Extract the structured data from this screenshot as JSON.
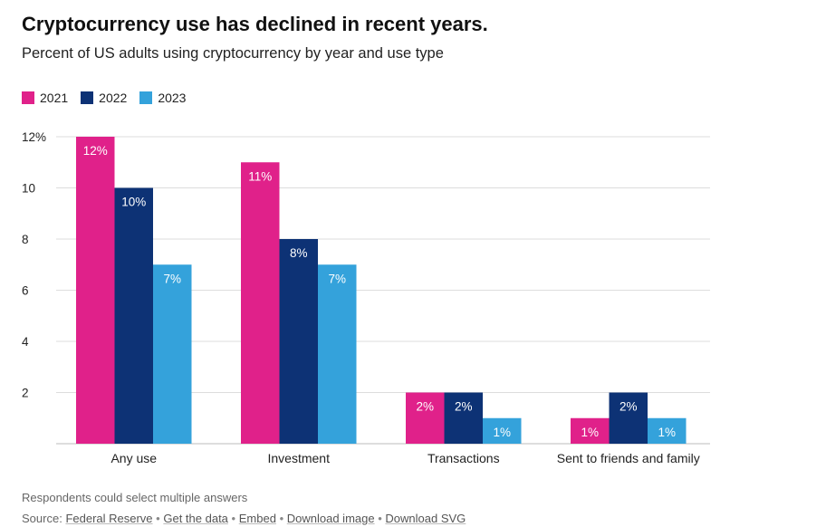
{
  "header": {
    "title": "Cryptocurrency use has declined in recent years.",
    "subtitle": "Percent of US adults using cryptocurrency by year and use type"
  },
  "legend": [
    {
      "label": "2021",
      "color": "#e0218a"
    },
    {
      "label": "2022",
      "color": "#0d3275"
    },
    {
      "label": "2023",
      "color": "#34a2db"
    }
  ],
  "chart_data": {
    "type": "bar",
    "categories": [
      "Any use",
      "Investment",
      "Transactions",
      "Sent to friends and family"
    ],
    "series": [
      {
        "name": "2021",
        "values": [
          12,
          11,
          2,
          1
        ],
        "color": "#e0218a"
      },
      {
        "name": "2022",
        "values": [
          10,
          8,
          2,
          2
        ],
        "color": "#0d3275"
      },
      {
        "name": "2023",
        "values": [
          7,
          7,
          1,
          1
        ],
        "color": "#34a2db"
      }
    ],
    "data_labels": [
      [
        "12%",
        "11%",
        "2%",
        "1%"
      ],
      [
        "10%",
        "8%",
        "2%",
        "2%"
      ],
      [
        "7%",
        "7%",
        "1%",
        "1%"
      ]
    ],
    "yticks": [
      {
        "value": 2,
        "label": "2"
      },
      {
        "value": 4,
        "label": "4"
      },
      {
        "value": 6,
        "label": "6"
      },
      {
        "value": 8,
        "label": "8"
      },
      {
        "value": 10,
        "label": "10"
      },
      {
        "value": 12,
        "label": "12%"
      }
    ],
    "ylim": [
      0,
      12
    ],
    "grid": true,
    "legend_position": "top-left"
  },
  "footer": {
    "note": "Respondents could select multiple answers",
    "source_prefix": "Source:",
    "links": [
      "Federal Reserve",
      "Get the data",
      "Embed",
      "Download image",
      "Download SVG"
    ],
    "separator": "•"
  }
}
